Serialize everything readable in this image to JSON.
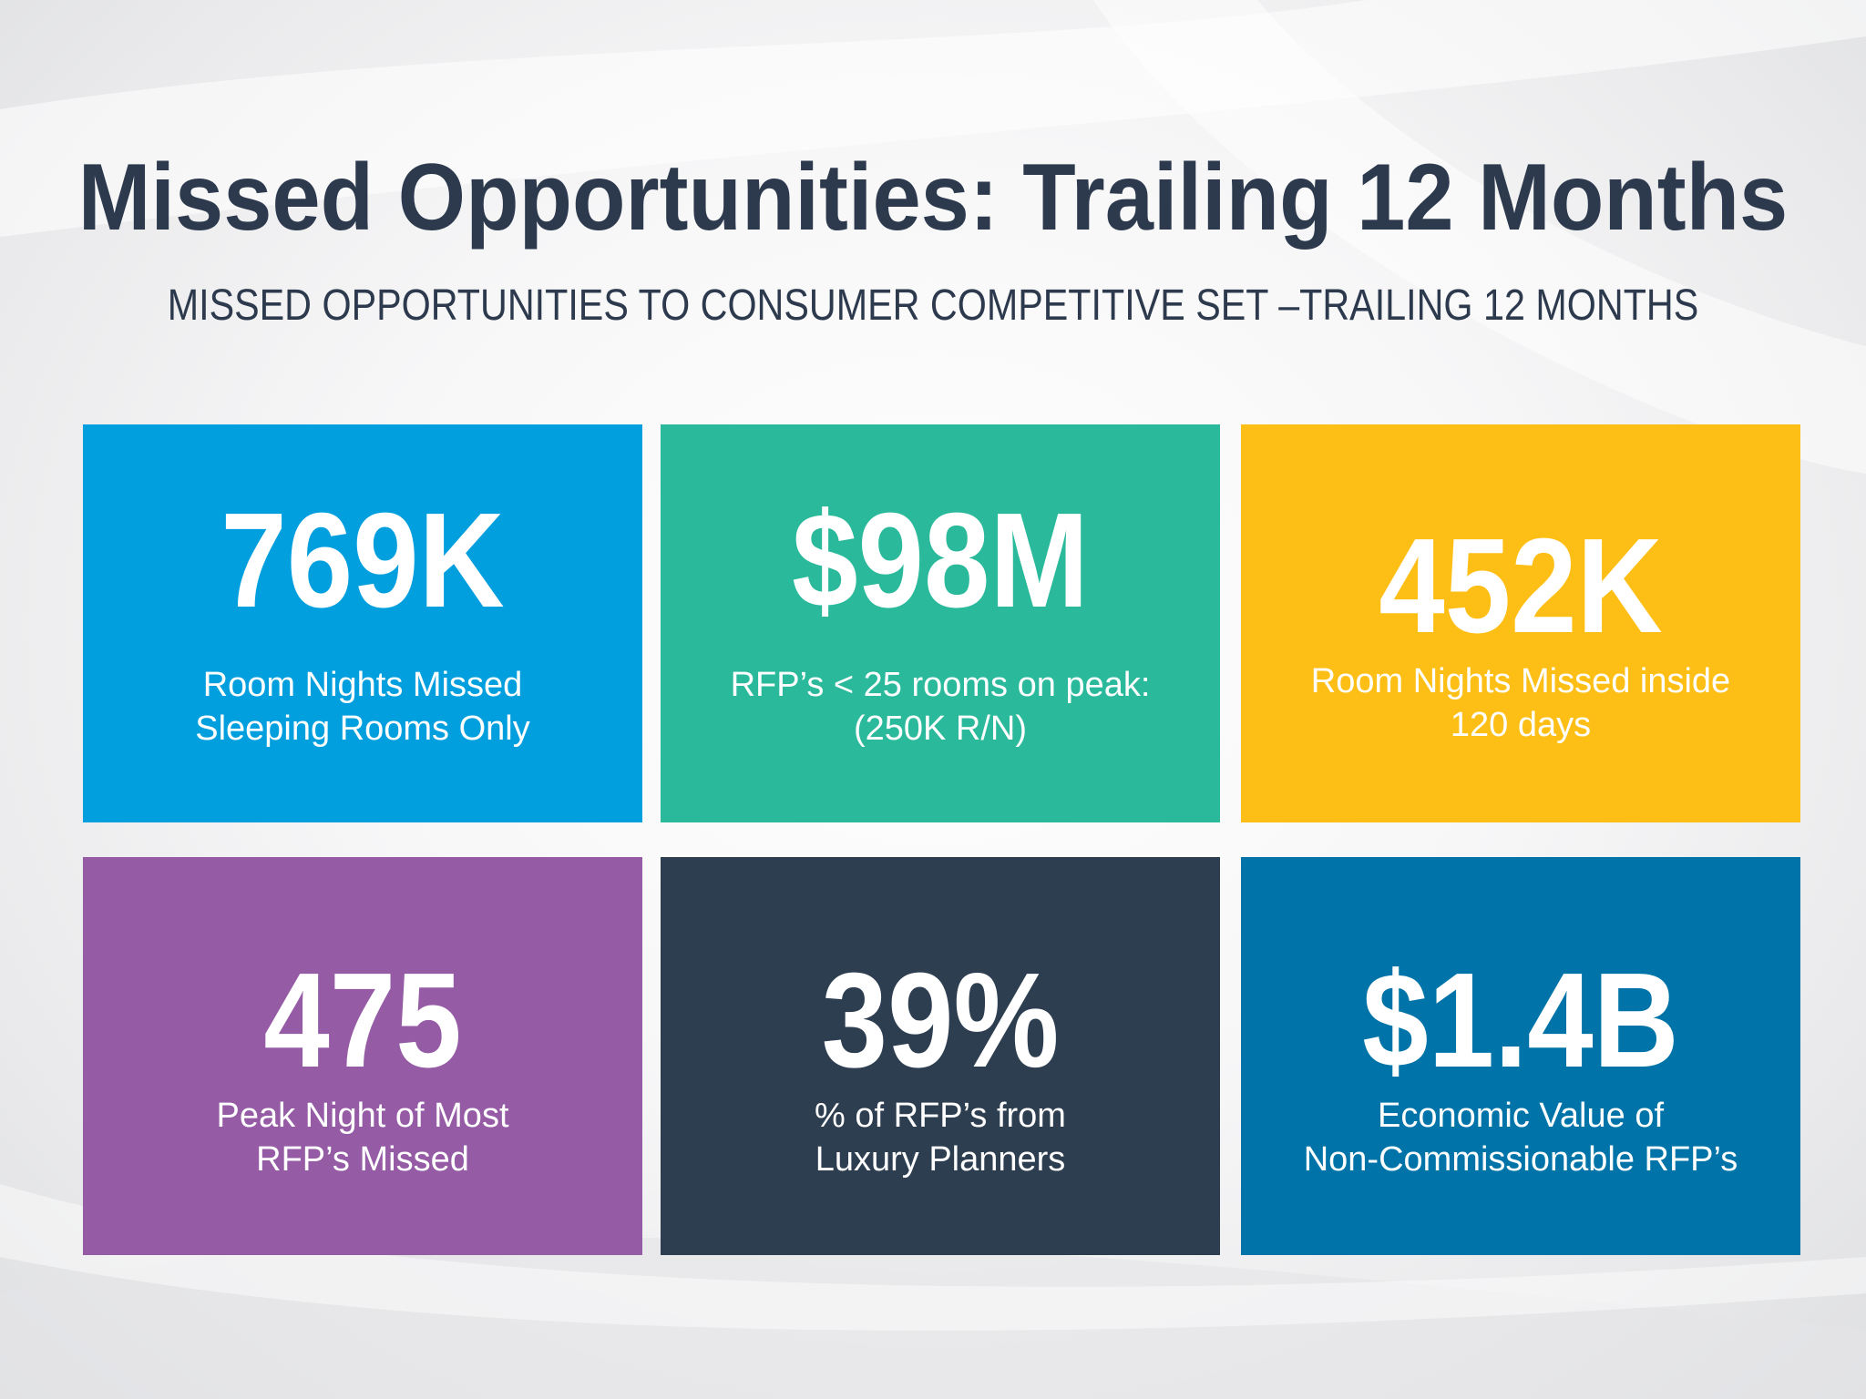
{
  "slide": {
    "title": "Missed Opportunities: Trailing 12 Months",
    "subtitle": "MISSED OPPORTUNITIES TO CONSUMER COMPETITIVE SET –TRAILING 12 MONTHS"
  },
  "tiles": [
    {
      "value": "769K",
      "label": "Room Nights Missed\nSleeping Rooms Only",
      "color": "#029fdf"
    },
    {
      "value": "$98M",
      "label": "RFP’s < 25 rooms on peak:\n(250K R/N)",
      "color": "#2ab99b"
    },
    {
      "value": "452K",
      "label": "Room Nights Missed inside\n120 days",
      "color": "#fdbf16"
    },
    {
      "value": "475",
      "label": "Peak Night of Most\nRFP’s Missed",
      "color": "#955ba5"
    },
    {
      "value": "39%",
      "label": "% of RFP’s from\nLuxury Planners",
      "color": "#2e3e51"
    },
    {
      "value": "$1.4B",
      "label": "Economic Value of\nNon-Commissionable RFP’s",
      "color": "#0074a8"
    }
  ]
}
